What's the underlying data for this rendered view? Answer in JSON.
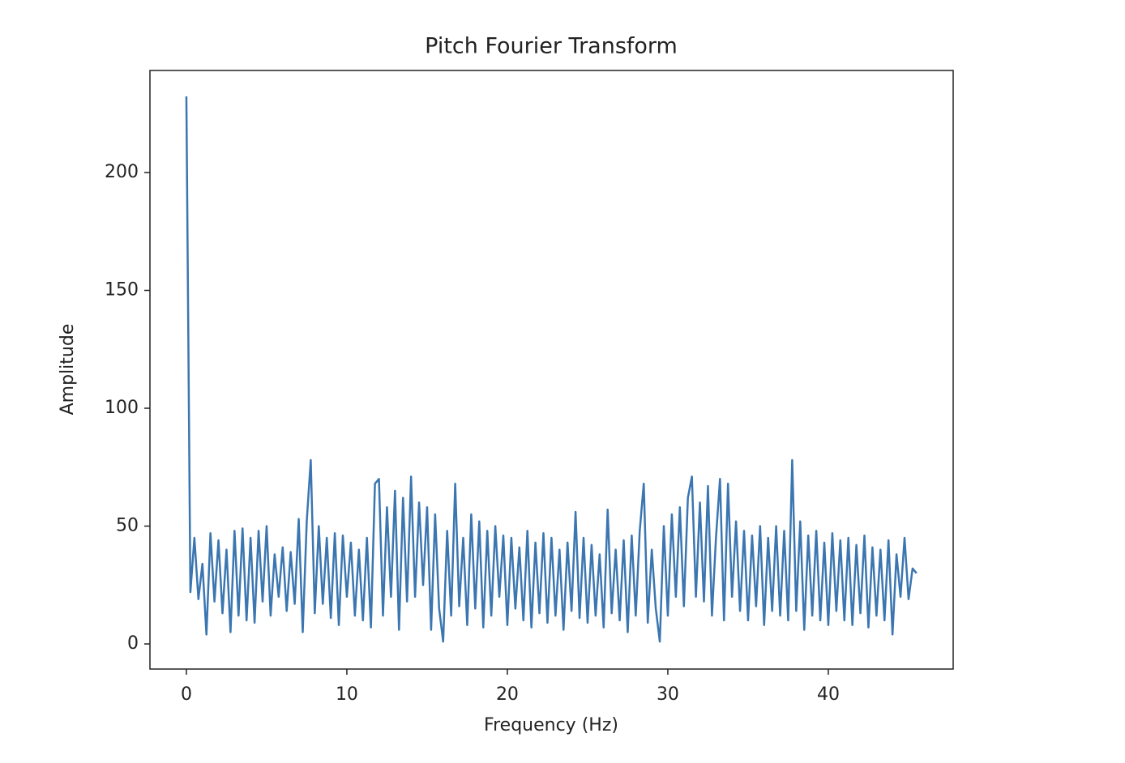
{
  "chart_data": {
    "type": "line",
    "title": "Pitch Fourier Transform",
    "x_label": "Frequency (Hz)",
    "y_label": "Amplitude",
    "x": [
      0,
      0.25,
      0.5,
      0.75,
      1,
      1.25,
      1.5,
      1.75,
      2,
      2.25,
      2.5,
      2.75,
      3,
      3.25,
      3.5,
      3.75,
      4,
      4.25,
      4.5,
      4.75,
      5,
      5.25,
      5.5,
      5.75,
      6,
      6.25,
      6.5,
      6.75,
      7,
      7.25,
      7.5,
      7.75,
      8,
      8.25,
      8.5,
      8.75,
      9,
      9.25,
      9.5,
      9.75,
      10,
      10.25,
      10.5,
      10.75,
      11,
      11.25,
      11.5,
      11.75,
      12,
      12.25,
      12.5,
      12.75,
      13,
      13.25,
      13.5,
      13.75,
      14,
      14.25,
      14.5,
      14.75,
      15,
      15.25,
      15.5,
      15.75,
      16,
      16.25,
      16.5,
      16.75,
      17,
      17.25,
      17.5,
      17.75,
      18,
      18.25,
      18.5,
      18.75,
      19,
      19.25,
      19.5,
      19.75,
      20,
      20.25,
      20.5,
      20.75,
      21,
      21.25,
      21.5,
      21.75,
      22,
      22.25,
      22.5,
      22.75,
      23,
      23.25,
      23.5,
      23.75,
      24,
      24.25,
      24.5,
      24.75,
      25,
      25.25,
      25.5,
      25.75,
      26,
      26.25,
      26.5,
      26.75,
      27,
      27.25,
      27.5,
      27.75,
      28,
      28.25,
      28.5,
      28.75,
      29,
      29.25,
      29.5,
      29.75,
      30,
      30.25,
      30.5,
      30.75,
      31,
      31.25,
      31.5,
      31.75,
      32,
      32.25,
      32.5,
      32.75,
      33,
      33.25,
      33.5,
      33.75,
      34,
      34.25,
      34.5,
      34.75,
      35,
      35.25,
      35.5,
      35.75,
      36,
      36.25,
      36.5,
      36.75,
      37,
      37.25,
      37.5,
      37.75,
      38,
      38.25,
      38.5,
      38.75,
      39,
      39.25,
      39.5,
      39.75,
      40,
      40.25,
      40.5,
      40.75,
      41,
      41.25,
      41.5,
      41.75,
      42,
      42.25,
      42.5,
      42.75,
      43,
      43.25,
      43.5,
      43.75,
      44,
      44.25,
      44.5,
      44.75,
      45,
      45.25,
      45.5
    ],
    "series": [
      {
        "name": "Amplitude",
        "color": "#3b76b1",
        "values": [
          232.3,
          22,
          45,
          19,
          34,
          4,
          47,
          18,
          44,
          13,
          40,
          5,
          48,
          12,
          49,
          10,
          45,
          9,
          48,
          18,
          50,
          12,
          38,
          20,
          41,
          14,
          39,
          17,
          53,
          5,
          52,
          78,
          13,
          50,
          17,
          45,
          11,
          47,
          8,
          46,
          20,
          43,
          12,
          40,
          10,
          45,
          7,
          68,
          70,
          12,
          58,
          20,
          65,
          6,
          62,
          18,
          71,
          20,
          60,
          25,
          58,
          6,
          55,
          15,
          1,
          48,
          12,
          68,
          16,
          45,
          8,
          55,
          15,
          52,
          7,
          48,
          12,
          50,
          20,
          46,
          8,
          45,
          15,
          41,
          10,
          48,
          7,
          43,
          13,
          47,
          9,
          45,
          12,
          40,
          6,
          43,
          14,
          56,
          11,
          45,
          9,
          42,
          12,
          38,
          7,
          57,
          13,
          40,
          10,
          44,
          5,
          46,
          12,
          48,
          68,
          9,
          40,
          15,
          1,
          50,
          12,
          55,
          20,
          58,
          16,
          62,
          71,
          20,
          60,
          18,
          67,
          12,
          45,
          70,
          10,
          68,
          20,
          52,
          14,
          48,
          10,
          46,
          16,
          50,
          8,
          45,
          14,
          50,
          12,
          48,
          10,
          78,
          14,
          52,
          6,
          46,
          12,
          48,
          10,
          43,
          8,
          47,
          14,
          44,
          10,
          45,
          8,
          42,
          13,
          46,
          7,
          41,
          12,
          40,
          10,
          44,
          4,
          38,
          20,
          45,
          19,
          32,
          30
        ]
      }
    ],
    "xlim": [
      -2.27,
      47.78
    ],
    "ylim": [
      -10.65,
      243.3
    ],
    "xticks": [
      0,
      10,
      20,
      30,
      40
    ],
    "yticks": [
      0,
      50,
      100,
      150,
      200
    ]
  }
}
